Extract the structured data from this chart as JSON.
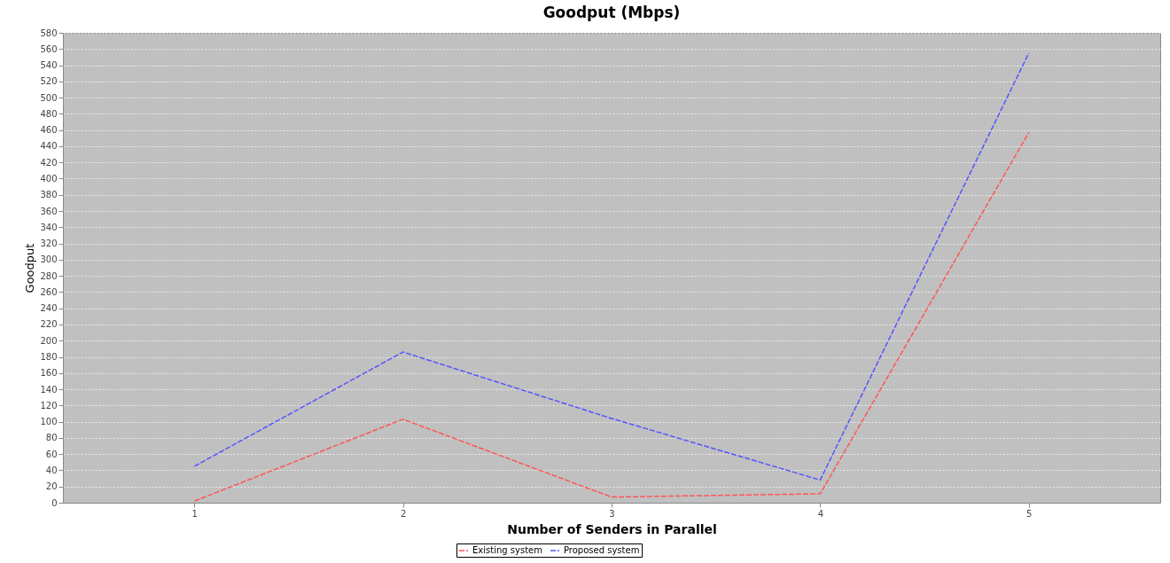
{
  "chart_data": {
    "type": "line",
    "title": "Goodput (Mbps)",
    "xlabel": "Number of Senders in Parallel",
    "ylabel": "Goodput",
    "categories": [
      "1",
      "2",
      "3",
      "4",
      "5"
    ],
    "series": [
      {
        "name": "Existing system",
        "color": "#ff5555",
        "values": [
          2,
          103,
          7,
          11,
          457
        ]
      },
      {
        "name": "Proposed system",
        "color": "#5555ff",
        "values": [
          45,
          186,
          104,
          28,
          555
        ]
      }
    ],
    "ylim": [
      0,
      580
    ],
    "yticks": [
      0,
      20,
      40,
      60,
      80,
      100,
      120,
      140,
      160,
      180,
      200,
      220,
      240,
      260,
      280,
      300,
      320,
      340,
      360,
      380,
      400,
      420,
      440,
      460,
      480,
      500,
      520,
      540,
      560,
      580
    ],
    "grid": "y",
    "legend": "bottom",
    "line_style": "dashed",
    "marker": "none"
  }
}
